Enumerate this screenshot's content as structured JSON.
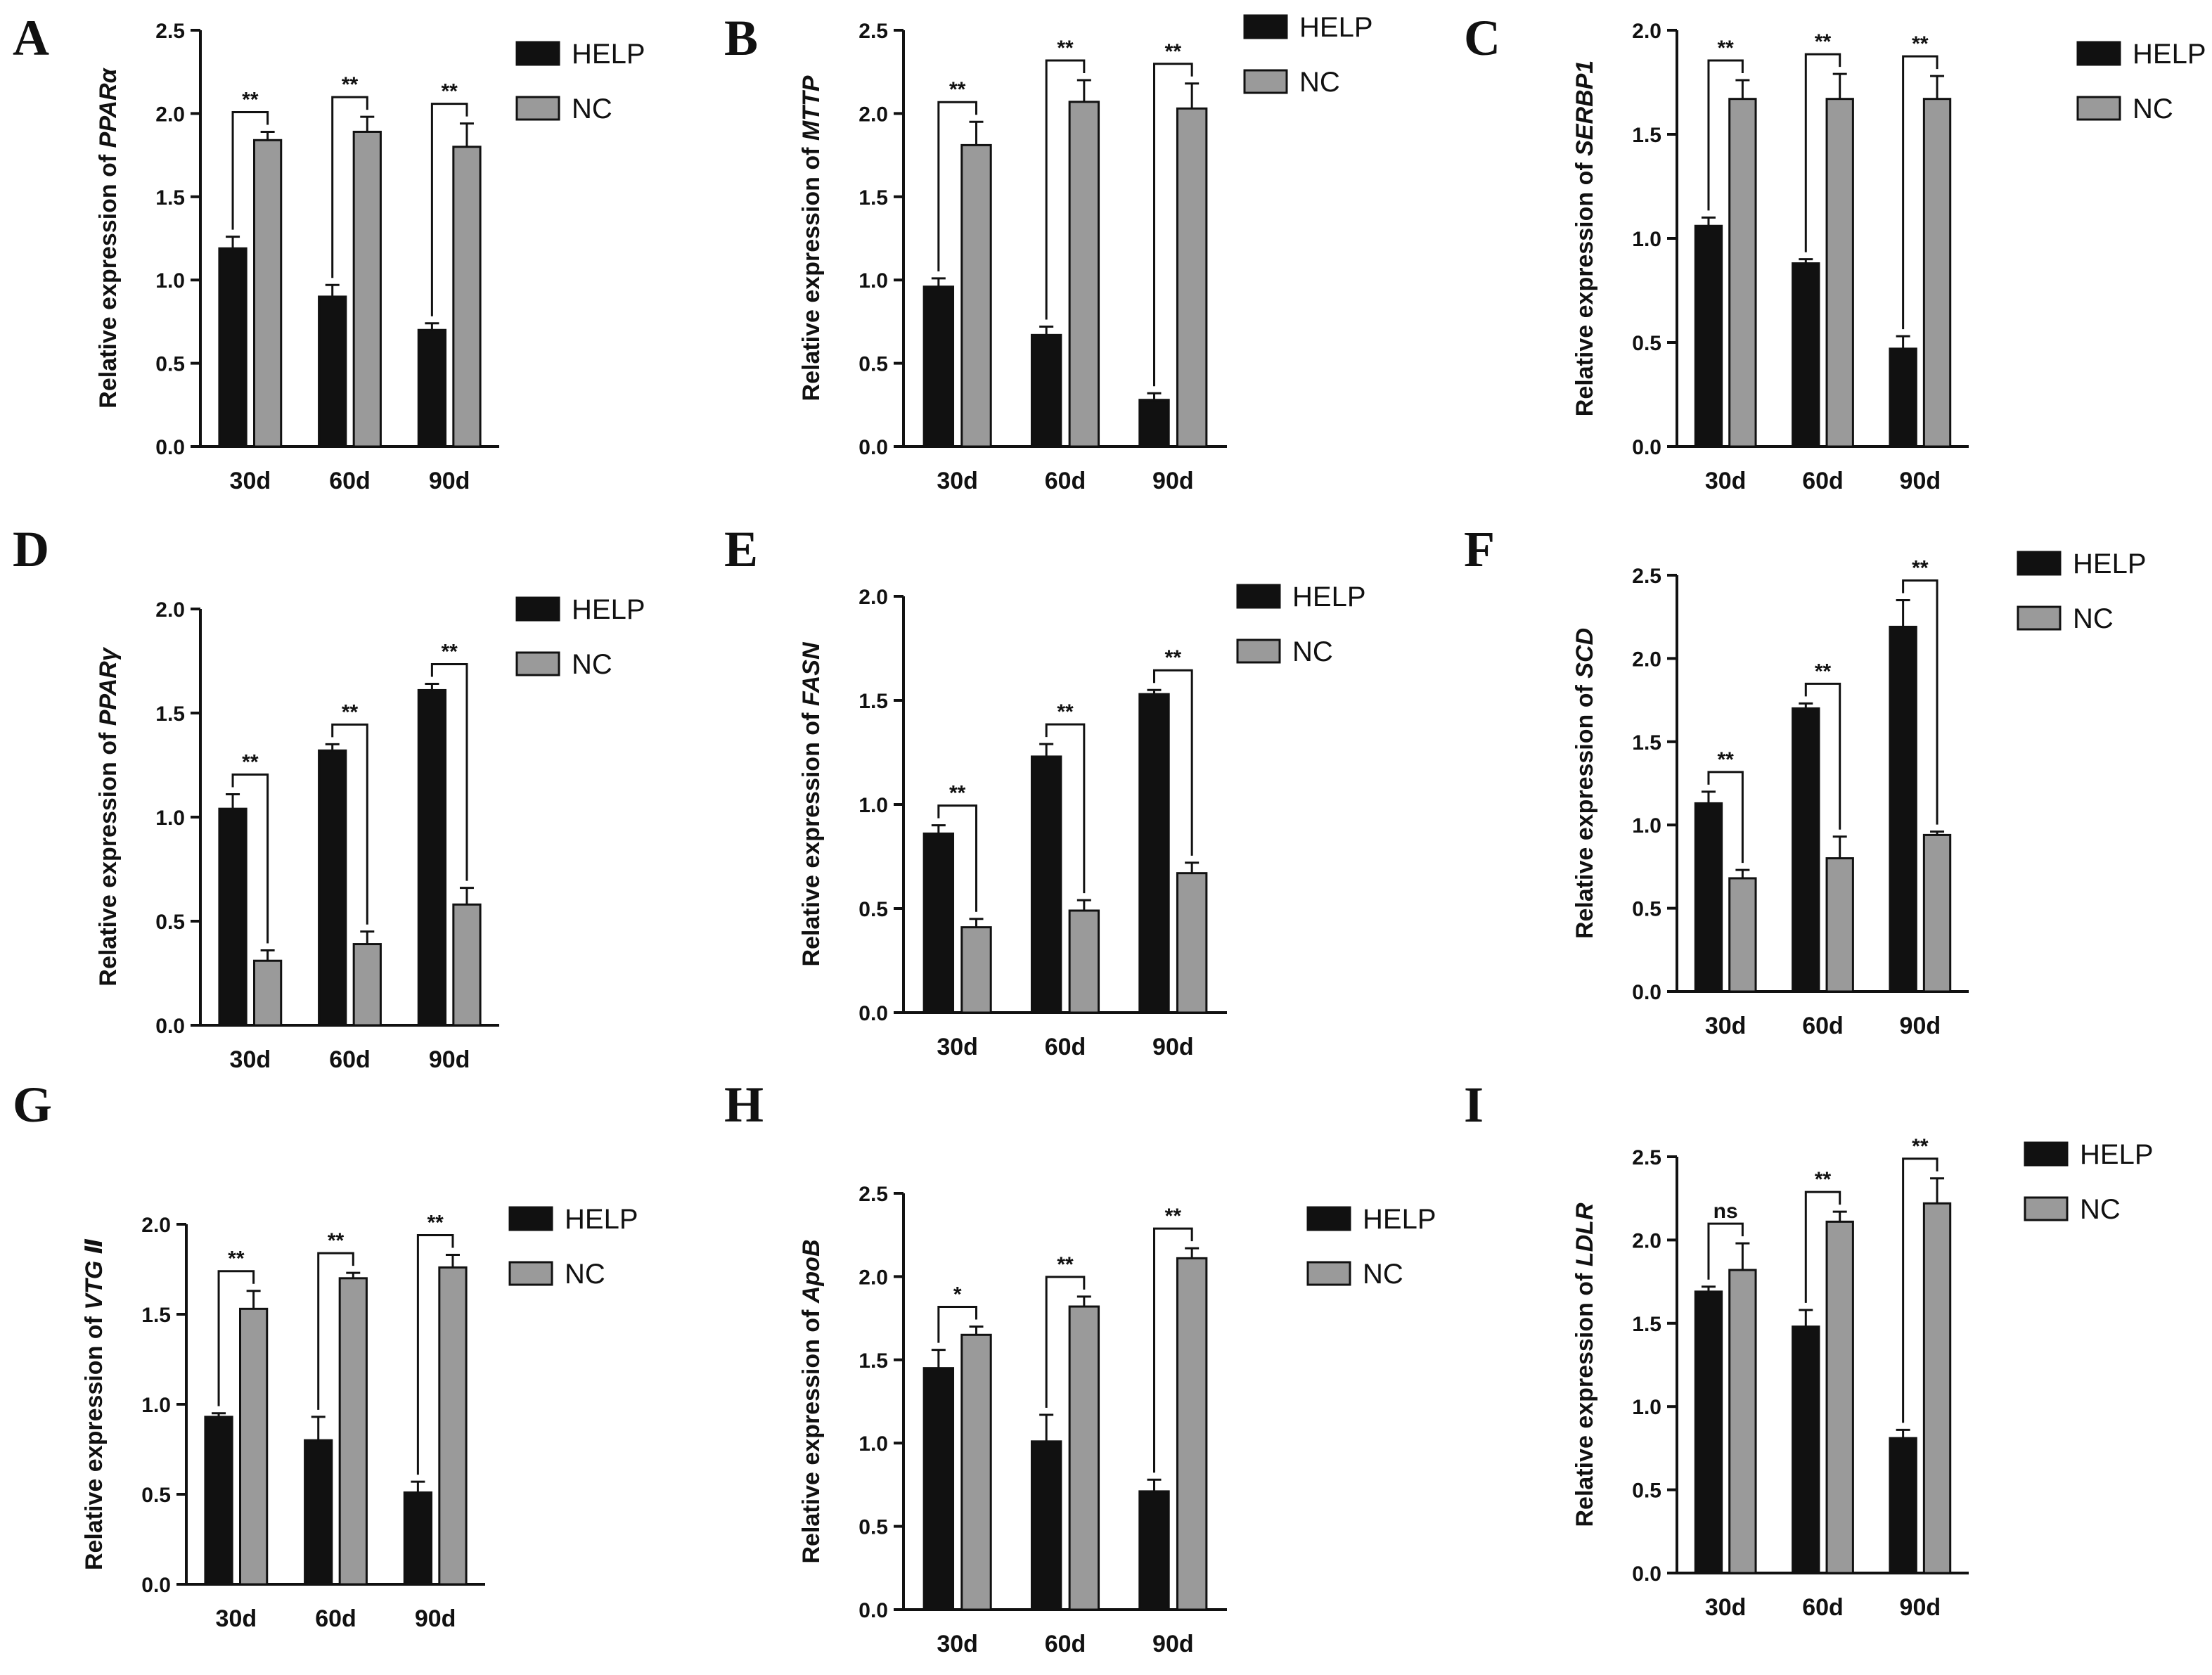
{
  "figure": {
    "series_names": [
      "HELP",
      "NC"
    ],
    "colors": {
      "HELP": "#111111",
      "NC": "#9a9a9a",
      "axis": "#111111"
    }
  },
  "chart_data": [
    {
      "panel": "A",
      "type": "bar",
      "ylabel_prefix": "Relative expression of ",
      "gene": "PPARα",
      "categories": [
        "30d",
        "60d",
        "90d"
      ],
      "ylim": [
        0,
        2.5
      ],
      "yticks": [
        "0.0",
        "0.5",
        "1.0",
        "1.5",
        "2.0",
        "2.5"
      ],
      "series": [
        {
          "name": "HELP",
          "values": [
            1.19,
            0.9,
            0.7
          ],
          "errors": [
            0.07,
            0.07,
            0.04
          ]
        },
        {
          "name": "NC",
          "values": [
            1.84,
            1.89,
            1.8
          ],
          "errors": [
            0.05,
            0.09,
            0.14
          ]
        }
      ],
      "significance": [
        "**",
        "**",
        "**"
      ]
    },
    {
      "panel": "B",
      "type": "bar",
      "ylabel_prefix": "Relative expression of ",
      "gene": "MTTP",
      "categories": [
        "30d",
        "60d",
        "90d"
      ],
      "ylim": [
        0,
        2.5
      ],
      "yticks": [
        "0.0",
        "0.5",
        "1.0",
        "1.5",
        "2.0",
        "2.5"
      ],
      "series": [
        {
          "name": "HELP",
          "values": [
            0.96,
            0.67,
            0.28
          ],
          "errors": [
            0.05,
            0.05,
            0.04
          ]
        },
        {
          "name": "NC",
          "values": [
            1.81,
            2.07,
            2.03
          ],
          "errors": [
            0.14,
            0.13,
            0.15
          ]
        }
      ],
      "significance": [
        "**",
        "**",
        "**"
      ]
    },
    {
      "panel": "C",
      "type": "bar",
      "ylabel_prefix": "Relative expression of ",
      "gene": "SERBP1",
      "categories": [
        "30d",
        "60d",
        "90d"
      ],
      "ylim": [
        0,
        2.0
      ],
      "yticks": [
        "0.0",
        "0.5",
        "1.0",
        "1.5",
        "2.0"
      ],
      "series": [
        {
          "name": "HELP",
          "values": [
            1.06,
            0.88,
            0.47
          ],
          "errors": [
            0.04,
            0.02,
            0.06
          ]
        },
        {
          "name": "NC",
          "values": [
            1.67,
            1.67,
            1.67
          ],
          "errors": [
            0.09,
            0.12,
            0.11
          ]
        }
      ],
      "significance": [
        "**",
        "**",
        "**"
      ]
    },
    {
      "panel": "D",
      "type": "bar",
      "ylabel_prefix": "Relative expression of ",
      "gene": "PPARγ",
      "categories": [
        "30d",
        "60d",
        "90d"
      ],
      "ylim": [
        0,
        2.0
      ],
      "yticks": [
        "0.0",
        "0.5",
        "1.0",
        "1.5",
        "2.0"
      ],
      "series": [
        {
          "name": "HELP",
          "values": [
            1.04,
            1.32,
            1.61
          ],
          "errors": [
            0.07,
            0.03,
            0.03
          ]
        },
        {
          "name": "NC",
          "values": [
            0.31,
            0.39,
            0.58
          ],
          "errors": [
            0.05,
            0.06,
            0.08
          ]
        }
      ],
      "significance": [
        "**",
        "**",
        "**"
      ]
    },
    {
      "panel": "E",
      "type": "bar",
      "ylabel_prefix": "Relative expression of ",
      "gene": "FASN",
      "categories": [
        "30d",
        "60d",
        "90d"
      ],
      "ylim": [
        0,
        2.0
      ],
      "yticks": [
        "0.0",
        "0.5",
        "1.0",
        "1.5",
        "2.0"
      ],
      "series": [
        {
          "name": "HELP",
          "values": [
            0.86,
            1.23,
            1.53
          ],
          "errors": [
            0.04,
            0.06,
            0.02
          ]
        },
        {
          "name": "NC",
          "values": [
            0.41,
            0.49,
            0.67
          ],
          "errors": [
            0.04,
            0.05,
            0.05
          ]
        }
      ],
      "significance": [
        "**",
        "**",
        "**"
      ]
    },
    {
      "panel": "F",
      "type": "bar",
      "ylabel_prefix": "Relative expression of ",
      "gene": "SCD",
      "categories": [
        "30d",
        "60d",
        "90d"
      ],
      "ylim": [
        0,
        2.5
      ],
      "yticks": [
        "0.0",
        "0.5",
        "1.0",
        "1.5",
        "2.0",
        "2.5"
      ],
      "series": [
        {
          "name": "HELP",
          "values": [
            1.13,
            1.7,
            2.19
          ],
          "errors": [
            0.07,
            0.03,
            0.16
          ]
        },
        {
          "name": "NC",
          "values": [
            0.68,
            0.8,
            0.94
          ],
          "errors": [
            0.05,
            0.13,
            0.02
          ]
        }
      ],
      "significance": [
        "**",
        "**",
        "**"
      ]
    },
    {
      "panel": "G",
      "type": "bar",
      "ylabel_prefix": "Relative expression of ",
      "gene": "VTG Ⅱ",
      "categories": [
        "30d",
        "60d",
        "90d"
      ],
      "ylim": [
        0,
        2.0
      ],
      "yticks": [
        "0.0",
        "0.5",
        "1.0",
        "1.5",
        "2.0"
      ],
      "series": [
        {
          "name": "HELP",
          "values": [
            0.93,
            0.8,
            0.51
          ],
          "errors": [
            0.02,
            0.13,
            0.06
          ]
        },
        {
          "name": "NC",
          "values": [
            1.53,
            1.7,
            1.76
          ],
          "errors": [
            0.1,
            0.03,
            0.07
          ]
        }
      ],
      "significance": [
        "**",
        "**",
        "**"
      ]
    },
    {
      "panel": "H",
      "type": "bar",
      "ylabel_prefix": "Relative expression of ",
      "gene": "ApoB",
      "categories": [
        "30d",
        "60d",
        "90d"
      ],
      "ylim": [
        0,
        2.5
      ],
      "yticks": [
        "0.0",
        "0.5",
        "1.0",
        "1.5",
        "2.0",
        "2.5"
      ],
      "series": [
        {
          "name": "HELP",
          "values": [
            1.45,
            1.01,
            0.71
          ],
          "errors": [
            0.11,
            0.16,
            0.07
          ]
        },
        {
          "name": "NC",
          "values": [
            1.65,
            1.82,
            2.11
          ],
          "errors": [
            0.05,
            0.06,
            0.06
          ]
        }
      ],
      "significance": [
        "*",
        "**",
        "**"
      ]
    },
    {
      "panel": "I",
      "type": "bar",
      "ylabel_prefix": "Relative expression of ",
      "gene": "LDLR",
      "categories": [
        "30d",
        "60d",
        "90d"
      ],
      "ylim": [
        0,
        2.5
      ],
      "yticks": [
        "0.0",
        "0.5",
        "1.0",
        "1.5",
        "2.0",
        "2.5"
      ],
      "series": [
        {
          "name": "HELP",
          "values": [
            1.69,
            1.48,
            0.81
          ],
          "errors": [
            0.03,
            0.1,
            0.05
          ]
        },
        {
          "name": "NC",
          "values": [
            1.82,
            2.11,
            2.22
          ],
          "errors": [
            0.16,
            0.06,
            0.15
          ]
        }
      ],
      "significance": [
        "ns",
        "**",
        "**"
      ]
    }
  ]
}
